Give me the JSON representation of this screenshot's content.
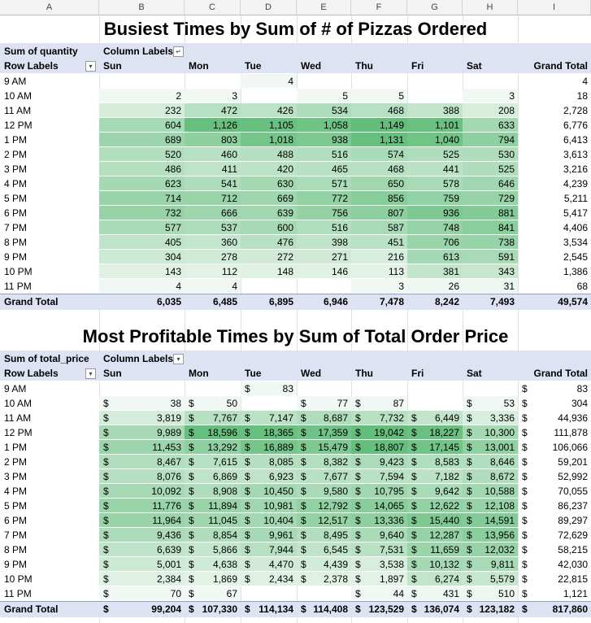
{
  "columns": [
    "A",
    "B",
    "C",
    "D",
    "E",
    "F",
    "G",
    "H",
    "I"
  ],
  "colors": {
    "header_band": "#dde3f2",
    "heat_low": "#f1f8f3",
    "heat_high": "#63be7b"
  },
  "pivot1": {
    "title": "Busiest Times by Sum of # of Pizzas Ordered",
    "value_label": "Sum of quantity",
    "column_labels": "Column Labels",
    "row_labels": "Row Labels",
    "days": [
      "Sun",
      "Mon",
      "Tue",
      "Wed",
      "Thu",
      "Fri",
      "Sat"
    ],
    "grand_total_label": "Grand Total",
    "hours": [
      "9 AM",
      "10 AM",
      "11 AM",
      "12 PM",
      "1 PM",
      "2 PM",
      "3 PM",
      "4 PM",
      "5 PM",
      "6 PM",
      "7 PM",
      "8 PM",
      "9 PM",
      "10 PM",
      "11 PM"
    ],
    "rows": [
      [
        "",
        "",
        "4",
        "",
        "",
        "",
        "",
        "4"
      ],
      [
        "2",
        "3",
        "",
        "5",
        "5",
        "",
        "3",
        "18"
      ],
      [
        "232",
        "472",
        "426",
        "534",
        "468",
        "388",
        "208",
        "2,728"
      ],
      [
        "604",
        "1,126",
        "1,105",
        "1,058",
        "1,149",
        "1,101",
        "633",
        "6,776"
      ],
      [
        "689",
        "803",
        "1,018",
        "938",
        "1,131",
        "1,040",
        "794",
        "6,413"
      ],
      [
        "520",
        "460",
        "488",
        "516",
        "574",
        "525",
        "530",
        "3,613"
      ],
      [
        "486",
        "411",
        "420",
        "465",
        "468",
        "441",
        "525",
        "3,216"
      ],
      [
        "623",
        "541",
        "630",
        "571",
        "650",
        "578",
        "646",
        "4,239"
      ],
      [
        "714",
        "712",
        "669",
        "772",
        "856",
        "759",
        "729",
        "5,211"
      ],
      [
        "732",
        "666",
        "639",
        "756",
        "807",
        "936",
        "881",
        "5,417"
      ],
      [
        "577",
        "537",
        "600",
        "516",
        "587",
        "748",
        "841",
        "4,406"
      ],
      [
        "405",
        "360",
        "476",
        "398",
        "451",
        "706",
        "738",
        "3,534"
      ],
      [
        "304",
        "278",
        "272",
        "271",
        "216",
        "613",
        "591",
        "2,545"
      ],
      [
        "143",
        "112",
        "148",
        "146",
        "113",
        "381",
        "343",
        "1,386"
      ],
      [
        "4",
        "4",
        "",
        "",
        "3",
        "26",
        "31",
        "68"
      ]
    ],
    "totals": [
      "6,035",
      "6,485",
      "6,895",
      "6,946",
      "7,478",
      "8,242",
      "7,493",
      "49,574"
    ]
  },
  "pivot2": {
    "title": "Most Profitable Times by Sum of Total Order Price",
    "value_label": "Sum of total_price",
    "column_labels": "Column Labels",
    "row_labels": "Row Labels",
    "days": [
      "Sun",
      "Mon",
      "Tue",
      "Wed",
      "Thu",
      "Fri",
      "Sat"
    ],
    "grand_total_label": "Grand Total",
    "currency": "$",
    "hours": [
      "9 AM",
      "10 AM",
      "11 AM",
      "12 PM",
      "1 PM",
      "2 PM",
      "3 PM",
      "4 PM",
      "5 PM",
      "6 PM",
      "7 PM",
      "8 PM",
      "9 PM",
      "10 PM",
      "11 PM"
    ],
    "rows": [
      [
        "",
        "",
        "83",
        "",
        "",
        "",
        "",
        "83"
      ],
      [
        "38",
        "50",
        "",
        "77",
        "87",
        "",
        "53",
        "304"
      ],
      [
        "3,819",
        "7,767",
        "7,147",
        "8,687",
        "7,732",
        "6,449",
        "3,336",
        "44,936"
      ],
      [
        "9,989",
        "18,596",
        "18,365",
        "17,359",
        "19,042",
        "18,227",
        "10,300",
        "111,878"
      ],
      [
        "11,453",
        "13,292",
        "16,889",
        "15,479",
        "18,807",
        "17,145",
        "13,001",
        "106,066"
      ],
      [
        "8,467",
        "7,615",
        "8,085",
        "8,382",
        "9,423",
        "8,583",
        "8,646",
        "59,201"
      ],
      [
        "8,076",
        "6,869",
        "6,923",
        "7,677",
        "7,594",
        "7,182",
        "8,672",
        "52,992"
      ],
      [
        "10,092",
        "8,908",
        "10,450",
        "9,580",
        "10,795",
        "9,642",
        "10,588",
        "70,055"
      ],
      [
        "11,776",
        "11,894",
        "10,981",
        "12,792",
        "14,065",
        "12,622",
        "12,108",
        "86,237"
      ],
      [
        "11,964",
        "11,045",
        "10,404",
        "12,517",
        "13,336",
        "15,440",
        "14,591",
        "89,297"
      ],
      [
        "9,436",
        "8,854",
        "9,961",
        "8,495",
        "9,640",
        "12,287",
        "13,956",
        "72,629"
      ],
      [
        "6,639",
        "5,866",
        "7,944",
        "6,545",
        "7,531",
        "11,659",
        "12,032",
        "58,215"
      ],
      [
        "5,001",
        "4,638",
        "4,470",
        "4,439",
        "3,538",
        "10,132",
        "9,811",
        "42,030"
      ],
      [
        "2,384",
        "1,869",
        "2,434",
        "2,378",
        "1,897",
        "6,274",
        "5,579",
        "22,815"
      ],
      [
        "70",
        "67",
        "",
        "",
        "44",
        "431",
        "510",
        "1,121"
      ]
    ],
    "totals": [
      "99,204",
      "107,330",
      "114,134",
      "114,408",
      "123,529",
      "136,074",
      "123,182",
      "817,860"
    ]
  }
}
